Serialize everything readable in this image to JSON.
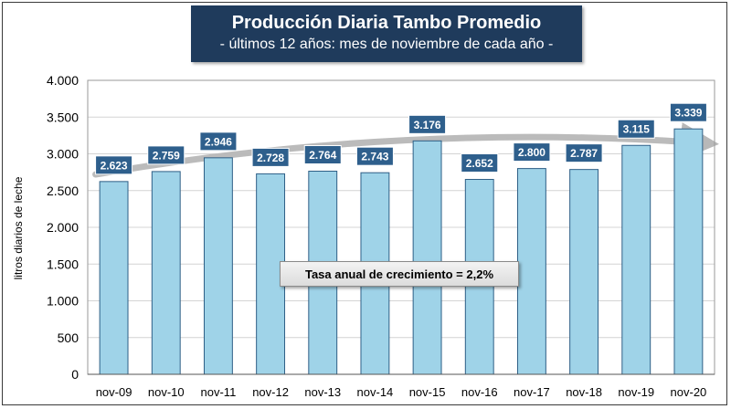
{
  "header": {
    "title": "Producción Diaria Tambo Promedio",
    "subtitle": "- últimos 12 años: mes de noviembre de cada año -"
  },
  "annotation": "Tasa anual de crecimiento = 2,2%",
  "chart_data": {
    "type": "bar",
    "title": "Producción Diaria Tambo Promedio",
    "subtitle": "- últimos 12 años: mes de noviembre de cada año -",
    "categories": [
      "nov-09",
      "nov-10",
      "nov-11",
      "nov-12",
      "nov-13",
      "nov-14",
      "nov-15",
      "nov-16",
      "nov-17",
      "nov-18",
      "nov-19",
      "nov-20"
    ],
    "values": [
      2623,
      2759,
      2946,
      2728,
      2764,
      2743,
      3176,
      2652,
      2800,
      2787,
      3115,
      3339
    ],
    "data_labels": [
      "2.623",
      "2.759",
      "2.946",
      "2.728",
      "2.764",
      "2.743",
      "3.176",
      "2.652",
      "2.800",
      "2.787",
      "3.115",
      "3.339"
    ],
    "ylabel": "litros diarios de leche",
    "xlabel": "",
    "ylim": [
      0,
      4000
    ],
    "yticks": [
      0,
      500,
      1000,
      1500,
      2000,
      2500,
      3000,
      3500,
      4000
    ],
    "ytick_labels": [
      "0",
      "500",
      "1.000",
      "1.500",
      "2.000",
      "2.500",
      "3.000",
      "3.500",
      "4.000"
    ],
    "grid": true,
    "trend": "upward arrow",
    "colors": {
      "bar_fill": "#9fd3e8",
      "bar_stroke": "#2e5f86",
      "label_bg": "#2e5f8c",
      "title_bg": "#1f3b5c",
      "trend_arrow": "#b8b8b8"
    }
  }
}
